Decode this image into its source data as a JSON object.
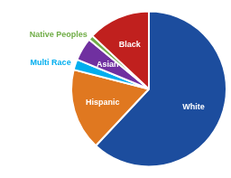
{
  "chart_data": {
    "type": "pie",
    "categories": [
      "White",
      "Hispanic",
      "Multi Race",
      "Asian",
      "Native Peoples",
      "Black"
    ],
    "values": [
      62,
      17,
      2.2,
      4.8,
      1.0,
      13
    ],
    "colors": [
      "#1c4d9e",
      "#e07820",
      "#00aeef",
      "#7030a0",
      "#70ad47",
      "#c0201e"
    ]
  }
}
